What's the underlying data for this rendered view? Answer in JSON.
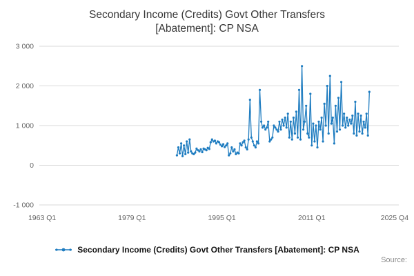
{
  "title": {
    "line1": "Secondary Income (Credits) Govt Other Transfers",
    "line2": "[Abatement]: CP NSA"
  },
  "legend": {
    "label": "Secondary Income (Credits) Govt Other Transfers [Abatement]: CP NSA"
  },
  "source_label": "Source:",
  "colors": {
    "series": "#1e7cc0",
    "grid": "#d9d9d9",
    "tick_text": "#636363",
    "title_text": "#373737"
  },
  "chart_data": {
    "type": "line",
    "title": "Secondary Income (Credits) Govt Other Transfers [Abatement]: CP NSA",
    "grid": "horizontal",
    "legend_position": "bottom",
    "x_axis": {
      "tick_labels": [
        "1963 Q1",
        "1979 Q1",
        "1995 Q1",
        "2011 Q1",
        "2025 Q4"
      ],
      "tick_values": [
        1963.0,
        1979.0,
        1995.0,
        2011.0,
        2025.75
      ],
      "range": [
        1962.5,
        2026.5
      ]
    },
    "y_axis": {
      "tick_labels": [
        "-1 000",
        "0",
        "1 000",
        "2 000",
        "3 000"
      ],
      "tick_values": [
        -1000,
        0,
        1000,
        2000,
        3000
      ],
      "range": [
        -1000,
        3000
      ]
    },
    "series": [
      {
        "name": "Secondary Income (Credits) Govt Other Transfers [Abatement]: CP NSA",
        "frequency": "quarterly",
        "x_start": 1987.0,
        "x_step": 0.25,
        "values": [
          250,
          450,
          300,
          550,
          230,
          500,
          280,
          600,
          320,
          650,
          350,
          300,
          280,
          320,
          420,
          380,
          350,
          400,
          330,
          420,
          400,
          380,
          440,
          410,
          580,
          650,
          600,
          620,
          550,
          600,
          580,
          520,
          480,
          530,
          460,
          500,
          550,
          250,
          300,
          450,
          350,
          400,
          280,
          320,
          300,
          550,
          500,
          580,
          620,
          450,
          400,
          650,
          1650,
          700,
          600,
          500,
          450,
          600,
          550,
          1900,
          1100,
          950,
          1000,
          900,
          950,
          1100,
          600,
          650,
          700,
          1000,
          950,
          900,
          850,
          1100,
          900,
          1150,
          1000,
          1200,
          950,
          1300,
          700,
          1100,
          650,
          1200,
          800,
          1350,
          700,
          1900,
          650,
          2500,
          900,
          1100,
          1500,
          800,
          700,
          1800,
          500,
          1050,
          600,
          1000,
          450,
          1100,
          900,
          1200,
          600,
          1550,
          1000,
          2000,
          800,
          2250,
          1050,
          1200,
          550,
          1500,
          850,
          1700,
          900,
          2100,
          1000,
          1300,
          950,
          1200,
          1000,
          1150,
          1050,
          1250,
          800,
          1600,
          750,
          1300,
          850,
          1250,
          800,
          1100,
          950,
          1300,
          750,
          1850
        ]
      }
    ]
  }
}
